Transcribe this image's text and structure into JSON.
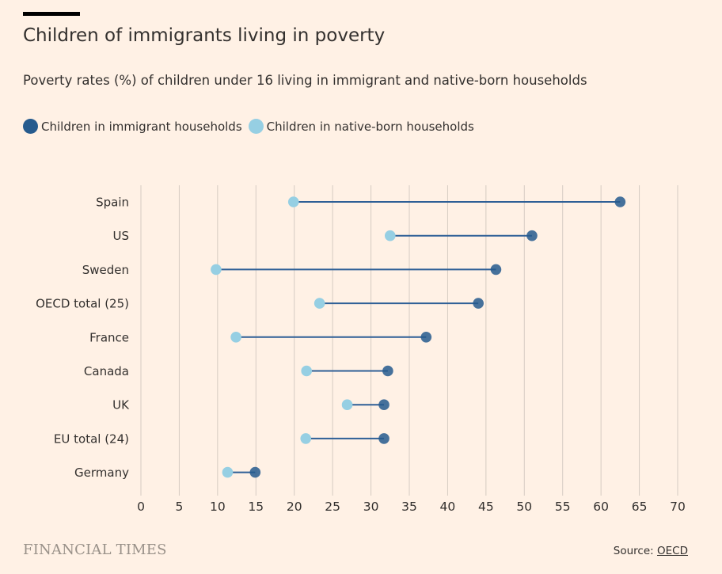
{
  "header": {
    "title": "Children of immigrants living in poverty",
    "subtitle": "Poverty rates (%) of children under 16 living in immigrant and native-born households"
  },
  "legend": {
    "immigrant_label": "Children in immigrant households",
    "native_label": "Children in native-born households"
  },
  "colors": {
    "background": "#fff1e5",
    "immigrant": "#265b8e",
    "native": "#96cfe3",
    "connector": "#2e5f96",
    "grid": "#d6cbc2",
    "text": "#33302e"
  },
  "footer": {
    "brand": "FINANCIAL TIMES",
    "source_prefix": "Source: ",
    "source_link": "OECD"
  },
  "chart_data": {
    "type": "dumbbell",
    "title": "Children of immigrants living in poverty",
    "subtitle": "Poverty rates (%) of children under 16 living in immigrant and native-born households",
    "xlabel": "",
    "ylabel": "",
    "xlim": [
      0,
      70
    ],
    "x_ticks": [
      0,
      5,
      10,
      15,
      20,
      25,
      30,
      35,
      40,
      45,
      50,
      55,
      60,
      65,
      70
    ],
    "grid": true,
    "legend_position": "top-left",
    "categories": [
      "Spain",
      "US",
      "Sweden",
      "OECD total (25)",
      "France",
      "Canada",
      "UK",
      "EU total (24)",
      "Germany"
    ],
    "series": [
      {
        "name": "Children in immigrant households",
        "values": [
          62.5,
          51.0,
          46.3,
          44.0,
          37.2,
          32.2,
          31.7,
          31.7,
          14.9
        ]
      },
      {
        "name": "Children in native-born households",
        "values": [
          19.9,
          32.5,
          9.8,
          23.3,
          12.4,
          21.6,
          26.9,
          21.5,
          11.3
        ]
      }
    ]
  }
}
